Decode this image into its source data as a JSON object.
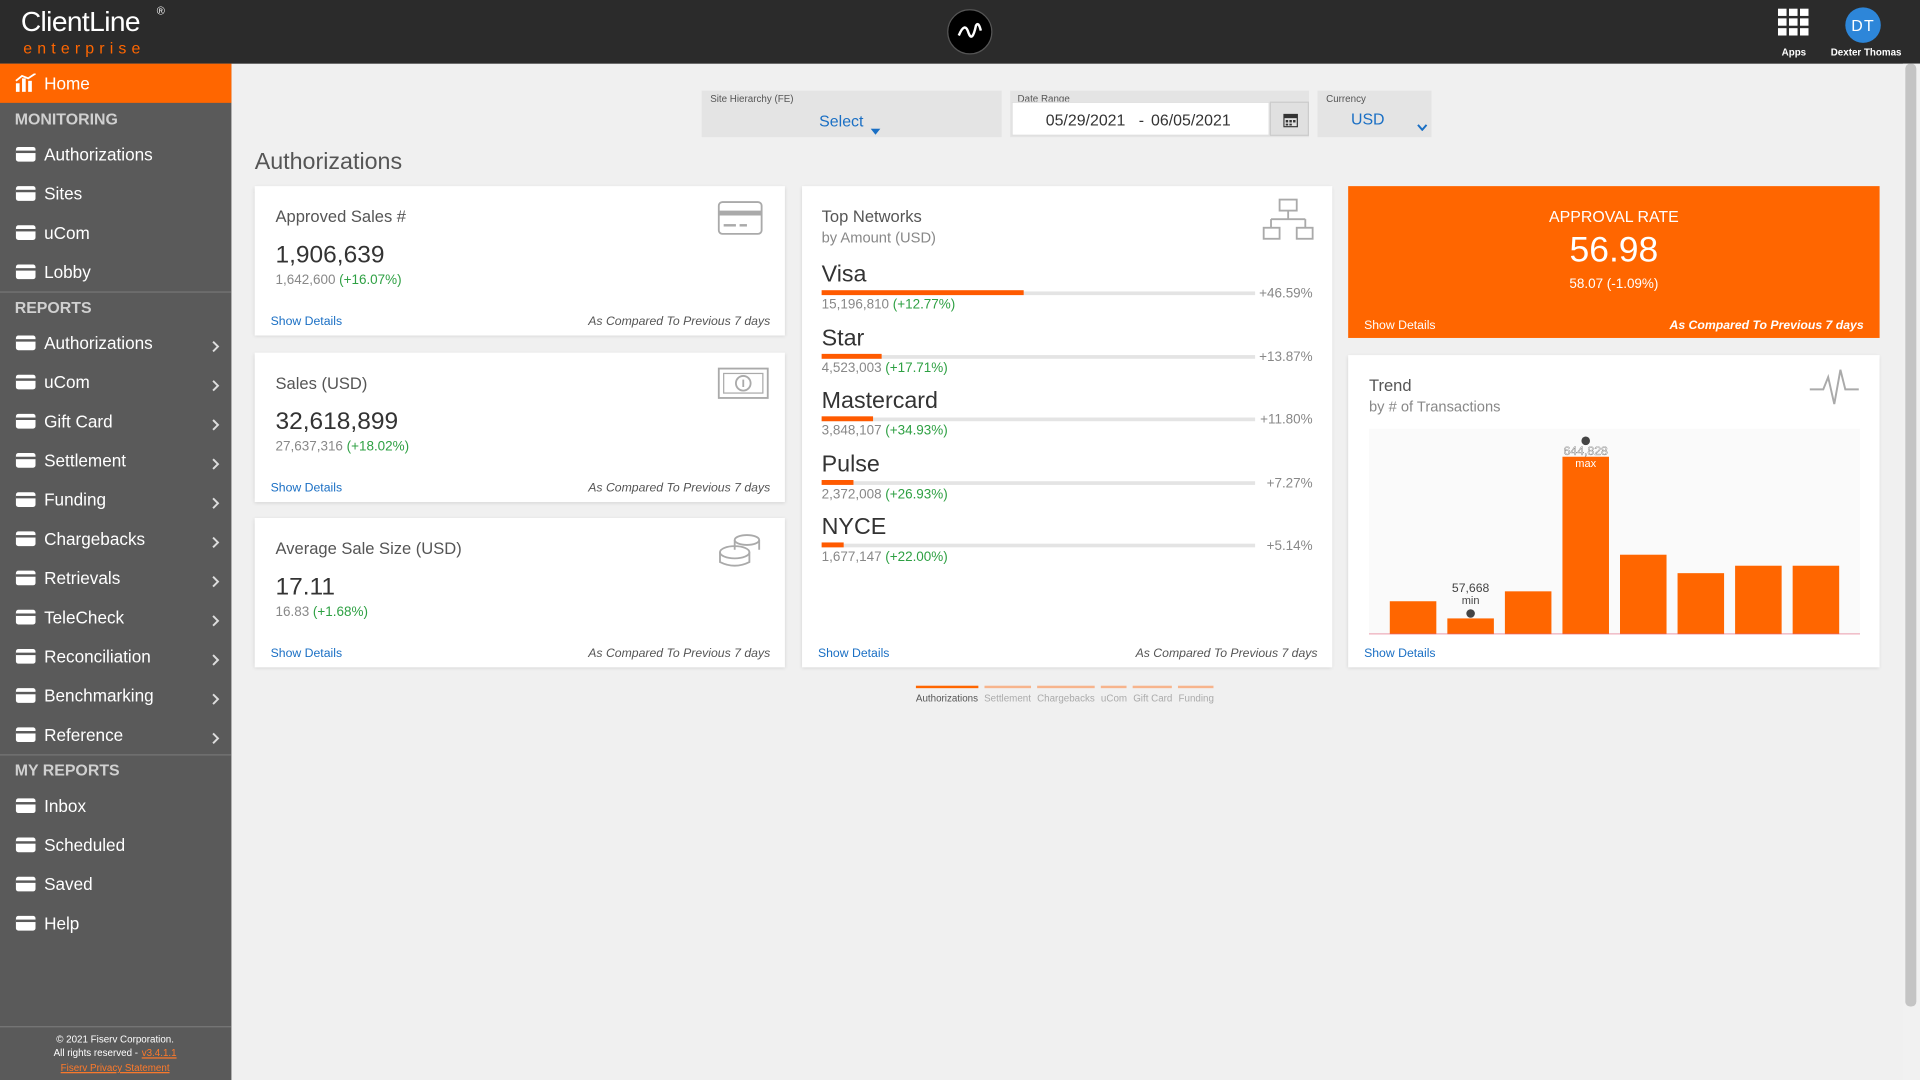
{
  "header": {
    "brand": "ClientLine",
    "brand_mark": "®",
    "brand_sub": "enterprise",
    "apps": "Apps",
    "user_initials": "DT",
    "user_name": "Dexter Thomas"
  },
  "sidebar": {
    "home": "Home",
    "sections": [
      {
        "title": "MONITORING",
        "submenu": false,
        "items": [
          "Authorizations",
          "Sites",
          "uCom",
          "Lobby"
        ]
      },
      {
        "title": "REPORTS",
        "submenu": true,
        "items": [
          "Authorizations",
          "uCom",
          "Gift Card",
          "Settlement",
          "Funding",
          "Chargebacks",
          "Retrievals",
          "TeleCheck",
          "Reconciliation",
          "Benchmarking",
          "Reference"
        ]
      },
      {
        "title": "MY REPORTS",
        "submenu": false,
        "items": [
          "Inbox",
          "Scheduled",
          "Saved",
          "Help"
        ]
      }
    ],
    "footer": {
      "copyright": "© 2021 Fiserv Corporation.",
      "rights": "All rights reserved -",
      "version": "v3.4.1.1",
      "privacy": "Fiserv Privacy Statement"
    }
  },
  "filters": {
    "site": {
      "label": "Site Hierarchy (FE)",
      "value": "Select"
    },
    "date": {
      "label": "Date Range",
      "from": "05/29/2021",
      "separator": "-",
      "to": "06/05/2021"
    },
    "currency": {
      "label": "Currency",
      "value": "USD"
    }
  },
  "page_title": "Authorizations",
  "kpis": [
    {
      "title": "Approved Sales #",
      "value": "1,906,639",
      "previous": "1,642,600",
      "change": "(+16.07%)",
      "link": "Show Details",
      "note": "As Compared To Previous 7 days"
    },
    {
      "title": "Sales (USD)",
      "value": "32,618,899",
      "previous": "27,637,316",
      "change": "(+18.02%)",
      "link": "Show Details",
      "note": "As Compared To Previous 7 days"
    },
    {
      "title": "Average Sale Size (USD)",
      "value": "17.11",
      "previous": "16.83",
      "change": "(+1.68%)",
      "link": "Show Details",
      "note": "As Compared To Previous 7 days"
    }
  ],
  "networks": {
    "title": "Top Networks",
    "subtitle": "by Amount (USD)",
    "items": [
      {
        "name": "Visa",
        "amount": "15,196,810",
        "change": "(+12.77%)",
        "share": 46.59,
        "share_label": "+46.59%"
      },
      {
        "name": "Star",
        "amount": "4,523,003",
        "change": "(+17.71%)",
        "share": 13.87,
        "share_label": "+13.87%"
      },
      {
        "name": "Mastercard",
        "amount": "3,848,107",
        "change": "(+34.93%)",
        "share": 11.8,
        "share_label": "+11.80%"
      },
      {
        "name": "Pulse",
        "amount": "2,372,008",
        "change": "(+26.93%)",
        "share": 7.27,
        "share_label": "+7.27%"
      },
      {
        "name": "NYCE",
        "amount": "1,677,147",
        "change": "(+22.00%)",
        "share": 5.14,
        "share_label": "+5.14%"
      }
    ],
    "link": "Show Details",
    "note": "As Compared To Previous 7 days"
  },
  "approval": {
    "title": "APPROVAL RATE",
    "value": "56.98",
    "previous": "58.07",
    "change": "(-1.09%)",
    "link": "Show Details",
    "note": "As Compared To Previous 7 days"
  },
  "chart_data": {
    "type": "bar",
    "title": "Trend",
    "subtitle": "by # of Transactions",
    "values": [
      120000,
      57668,
      156000,
      644828,
      289000,
      222000,
      249000,
      249000
    ],
    "value_labels": [
      null,
      "57,668",
      null,
      "644,828",
      null,
      null,
      null,
      null
    ],
    "markers": [
      null,
      "min",
      null,
      "max",
      null,
      null,
      null,
      null
    ],
    "color": "#ff6600",
    "link": "Show Details"
  },
  "tabs": {
    "items": [
      "Authorizations",
      "Settlement",
      "Chargebacks",
      "uCom",
      "Gift Card",
      "Funding"
    ],
    "active": "Authorizations"
  }
}
